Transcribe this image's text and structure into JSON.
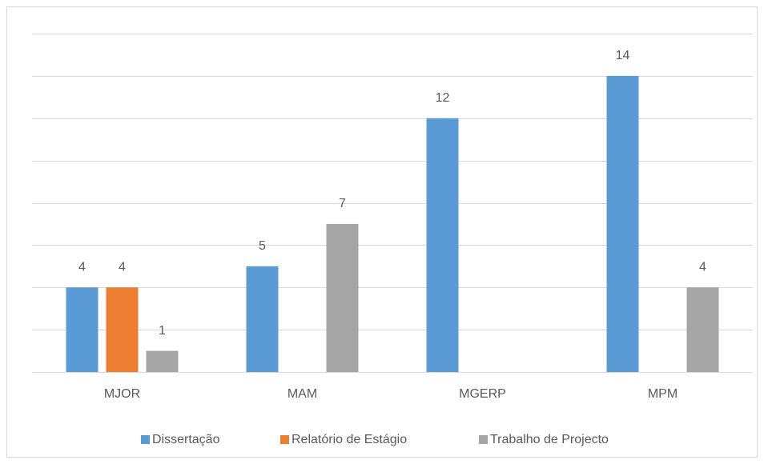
{
  "chart_data": {
    "type": "bar",
    "categories": [
      "MJOR",
      "MAM",
      "MGERP",
      "MPM"
    ],
    "series": [
      {
        "name": "Dissertação",
        "color": "#5b9bd5",
        "values": [
          4,
          5,
          12,
          14
        ]
      },
      {
        "name": "Relatório de Estágio",
        "color": "#ed7d31",
        "values": [
          4,
          null,
          null,
          null
        ]
      },
      {
        "name": "Trabalho de Projecto",
        "color": "#a5a5a5",
        "values": [
          1,
          7,
          null,
          4
        ]
      }
    ],
    "ylim": [
      0,
      16
    ],
    "yticks": [
      0,
      2,
      4,
      6,
      8,
      10,
      12,
      14,
      16
    ],
    "grid": true,
    "legend": "bottom"
  }
}
